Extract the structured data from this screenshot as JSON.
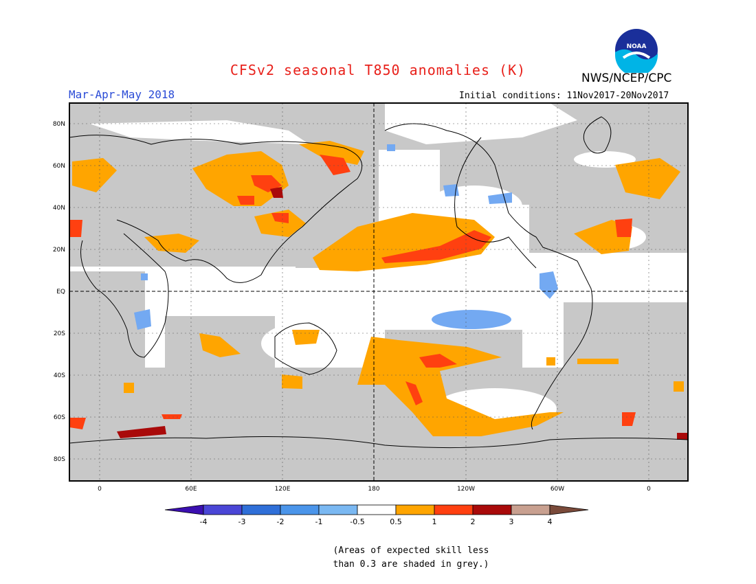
{
  "title": "CFSv2 seasonal T850 anomalies (K)",
  "agency": "NWS/NCEP/CPC",
  "logo_text": "NOAA",
  "season": "Mar-Apr-May 2018",
  "initial_conditions": "Initial conditions: 11Nov2017-20Nov2017",
  "lat_labels": [
    "80N",
    "60N",
    "40N",
    "20N",
    "EQ",
    "20S",
    "40S",
    "60S",
    "80S"
  ],
  "lon_labels": [
    "0",
    "60E",
    "120E",
    "180",
    "120W",
    "60W",
    "0"
  ],
  "colorbar": {
    "labels": [
      "-4",
      "-3",
      "-2",
      "-1",
      "-0.5",
      "0.5",
      "1",
      "2",
      "3",
      "4"
    ],
    "colors": [
      "#3b0fb0",
      "#4a46d6",
      "#2f6fd8",
      "#4b95ea",
      "#7ab8f2",
      "#ffffff",
      "#ffa500",
      "#ff4010",
      "#a90a0a",
      "#c8a090",
      "#7a4a3a"
    ]
  },
  "note": [
    "(Areas of expected skill less",
    "than 0.3 are shaded in grey.)"
  ],
  "colors": {
    "grey": "#c8c8c8",
    "orange": "#ffa500",
    "red": "#ff4010",
    "darkred": "#a90a0a",
    "blue": "#73a9f2",
    "title": "#e8201a",
    "season": "#2a4bd6"
  }
}
